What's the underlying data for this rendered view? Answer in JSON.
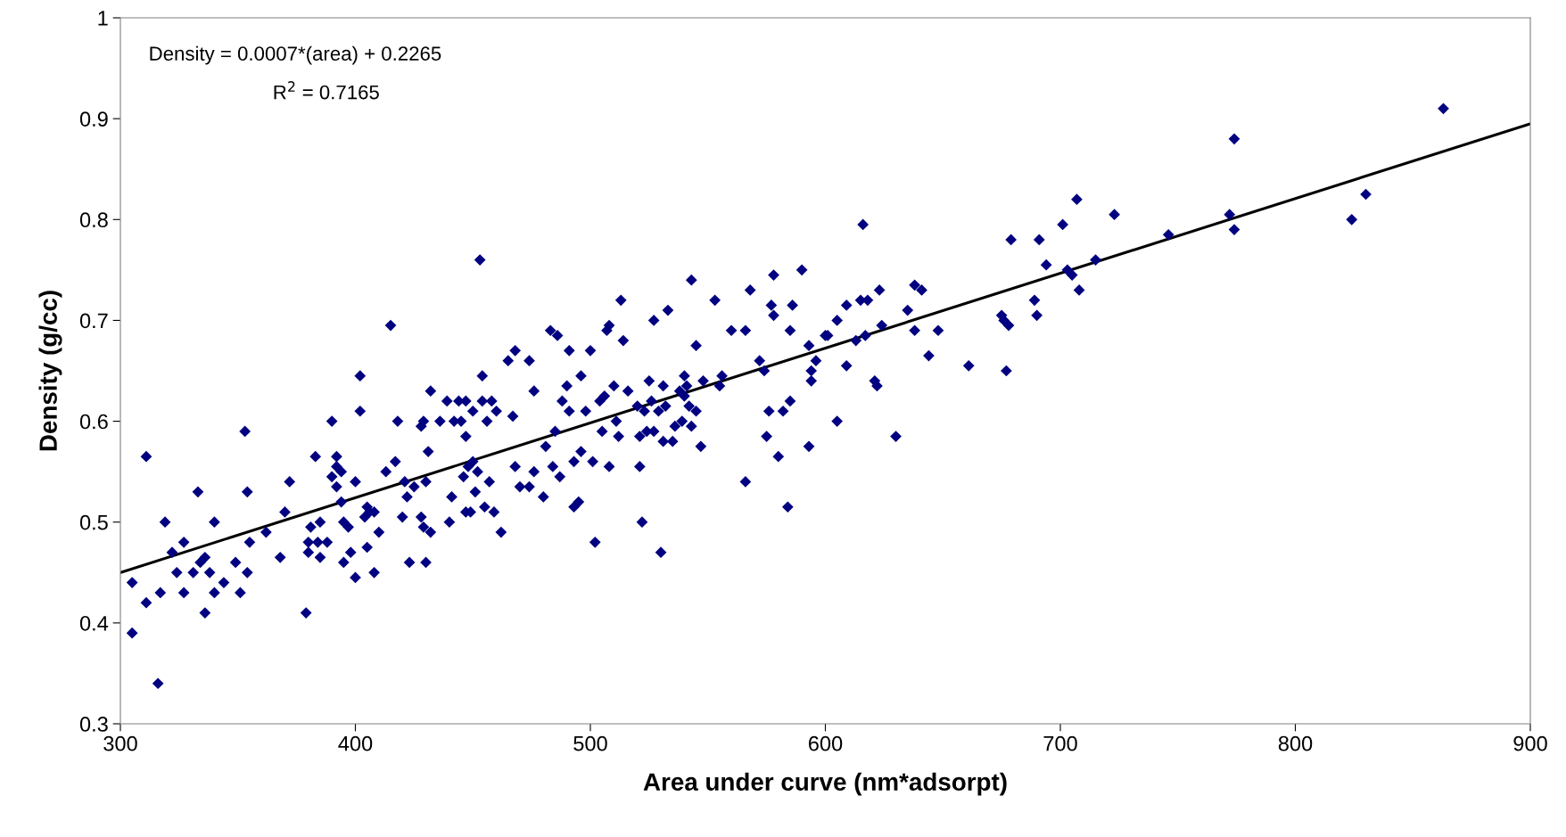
{
  "chart_data": {
    "type": "scatter",
    "xlabel": "Area under curve (nm*adsorpt)",
    "ylabel": "Density (g/cc)",
    "annotations": [
      "Density = 0.0007*(area) + 0.2265",
      "R$^{2}$ = 0.7165"
    ],
    "xlim": [
      300,
      900
    ],
    "xticks": [
      300,
      400,
      500,
      600,
      700,
      800,
      900
    ],
    "ylim": [
      0.3,
      1
    ],
    "yticks": [
      0.3,
      0.4,
      0.5,
      0.6,
      0.7,
      0.8,
      0.9,
      1
    ],
    "grid": false,
    "series": [
      {
        "marker": "diamond",
        "color": "#000080",
        "x": [
          305,
          305,
          311,
          311,
          316,
          317,
          319,
          322,
          324,
          327,
          327,
          331,
          333,
          334,
          336,
          336,
          338,
          340,
          340,
          344,
          349,
          351,
          353,
          354,
          354,
          355,
          362,
          368,
          370,
          372,
          379,
          380,
          380,
          381,
          383,
          384,
          385,
          385,
          388,
          390,
          390,
          392,
          392,
          392,
          394,
          394,
          395,
          395,
          397,
          398,
          400,
          400,
          402,
          402,
          404,
          405,
          405,
          406,
          408,
          408,
          410,
          413,
          415,
          417,
          418,
          420,
          421,
          422,
          423,
          425,
          428,
          428,
          429,
          429,
          430,
          430,
          431,
          432,
          432,
          436,
          439,
          440,
          441,
          442,
          444,
          445,
          446,
          447,
          447,
          447,
          448,
          449,
          450,
          450,
          451,
          452,
          453,
          454,
          454,
          455,
          456,
          457,
          458,
          459,
          460,
          462,
          465,
          467,
          468,
          468,
          470,
          474,
          474,
          476,
          476,
          480,
          481,
          483,
          484,
          485,
          486,
          487,
          488,
          490,
          491,
          491,
          493,
          493,
          495,
          496,
          496,
          498,
          500,
          501,
          502,
          504,
          505,
          506,
          507,
          508,
          508,
          510,
          511,
          512,
          513,
          514,
          516,
          520,
          521,
          521,
          522,
          523,
          524,
          525,
          526,
          527,
          527,
          529,
          530,
          531,
          531,
          532,
          533,
          535,
          536,
          538,
          539,
          540,
          540,
          541,
          542,
          543,
          543,
          545,
          545,
          547,
          548,
          553,
          555,
          556,
          560,
          566,
          566,
          568,
          572,
          574,
          575,
          576,
          577,
          578,
          578,
          580,
          582,
          584,
          585,
          585,
          586,
          590,
          593,
          593,
          594,
          594,
          596,
          600,
          601,
          605,
          605,
          609,
          609,
          613,
          615,
          616,
          617,
          618,
          621,
          622,
          623,
          624,
          630,
          635,
          638,
          638,
          641,
          644,
          648,
          661,
          675,
          676,
          677,
          678,
          679,
          689,
          690,
          691,
          694,
          701,
          703,
          705,
          707,
          708,
          715,
          723,
          746,
          772,
          774,
          774,
          824,
          830,
          863
        ],
        "values": [
          0.44,
          0.39,
          0.42,
          0.565,
          0.34,
          0.43,
          0.5,
          0.47,
          0.45,
          0.48,
          0.43,
          0.45,
          0.53,
          0.46,
          0.465,
          0.41,
          0.45,
          0.5,
          0.43,
          0.44,
          0.46,
          0.43,
          0.59,
          0.53,
          0.45,
          0.48,
          0.49,
          0.465,
          0.51,
          0.54,
          0.41,
          0.48,
          0.47,
          0.495,
          0.565,
          0.48,
          0.5,
          0.465,
          0.48,
          0.6,
          0.545,
          0.555,
          0.565,
          0.535,
          0.52,
          0.55,
          0.5,
          0.46,
          0.495,
          0.47,
          0.445,
          0.54,
          0.61,
          0.645,
          0.505,
          0.475,
          0.515,
          0.51,
          0.45,
          0.51,
          0.49,
          0.55,
          0.695,
          0.56,
          0.6,
          0.505,
          0.54,
          0.525,
          0.46,
          0.535,
          0.505,
          0.595,
          0.6,
          0.495,
          0.46,
          0.54,
          0.57,
          0.49,
          0.63,
          0.6,
          0.62,
          0.5,
          0.525,
          0.6,
          0.62,
          0.6,
          0.545,
          0.51,
          0.585,
          0.62,
          0.555,
          0.51,
          0.61,
          0.56,
          0.53,
          0.55,
          0.76,
          0.62,
          0.645,
          0.515,
          0.6,
          0.54,
          0.62,
          0.51,
          0.61,
          0.49,
          0.66,
          0.605,
          0.67,
          0.555,
          0.535,
          0.535,
          0.66,
          0.63,
          0.55,
          0.525,
          0.575,
          0.69,
          0.555,
          0.59,
          0.685,
          0.545,
          0.62,
          0.635,
          0.67,
          0.61,
          0.56,
          0.515,
          0.52,
          0.645,
          0.57,
          0.61,
          0.67,
          0.56,
          0.48,
          0.62,
          0.59,
          0.625,
          0.69,
          0.695,
          0.555,
          0.635,
          0.6,
          0.585,
          0.72,
          0.68,
          0.63,
          0.615,
          0.585,
          0.555,
          0.5,
          0.61,
          0.59,
          0.64,
          0.62,
          0.59,
          0.7,
          0.61,
          0.47,
          0.635,
          0.58,
          0.615,
          0.71,
          0.58,
          0.595,
          0.63,
          0.6,
          0.625,
          0.645,
          0.635,
          0.615,
          0.74,
          0.595,
          0.675,
          0.61,
          0.575,
          0.64,
          0.72,
          0.635,
          0.645,
          0.69,
          0.69,
          0.54,
          0.73,
          0.66,
          0.65,
          0.585,
          0.61,
          0.715,
          0.705,
          0.745,
          0.565,
          0.61,
          0.515,
          0.62,
          0.69,
          0.715,
          0.75,
          0.675,
          0.575,
          0.65,
          0.64,
          0.66,
          0.685,
          0.685,
          0.6,
          0.7,
          0.715,
          0.655,
          0.68,
          0.72,
          0.795,
          0.685,
          0.72,
          0.64,
          0.635,
          0.73,
          0.695,
          0.585,
          0.71,
          0.735,
          0.69,
          0.73,
          0.665,
          0.69,
          0.655,
          0.705,
          0.7,
          0.65,
          0.695,
          0.78,
          0.72,
          0.705,
          0.78,
          0.755,
          0.795,
          0.75,
          0.745,
          0.82,
          0.73,
          0.76,
          0.805,
          0.785,
          0.805,
          0.88,
          0.79,
          0.8,
          0.825,
          0.91
        ]
      },
      {
        "type": "line",
        "color": "#000000",
        "x": [
          300,
          900
        ],
        "values": [
          0.45,
          0.895
        ]
      }
    ]
  }
}
